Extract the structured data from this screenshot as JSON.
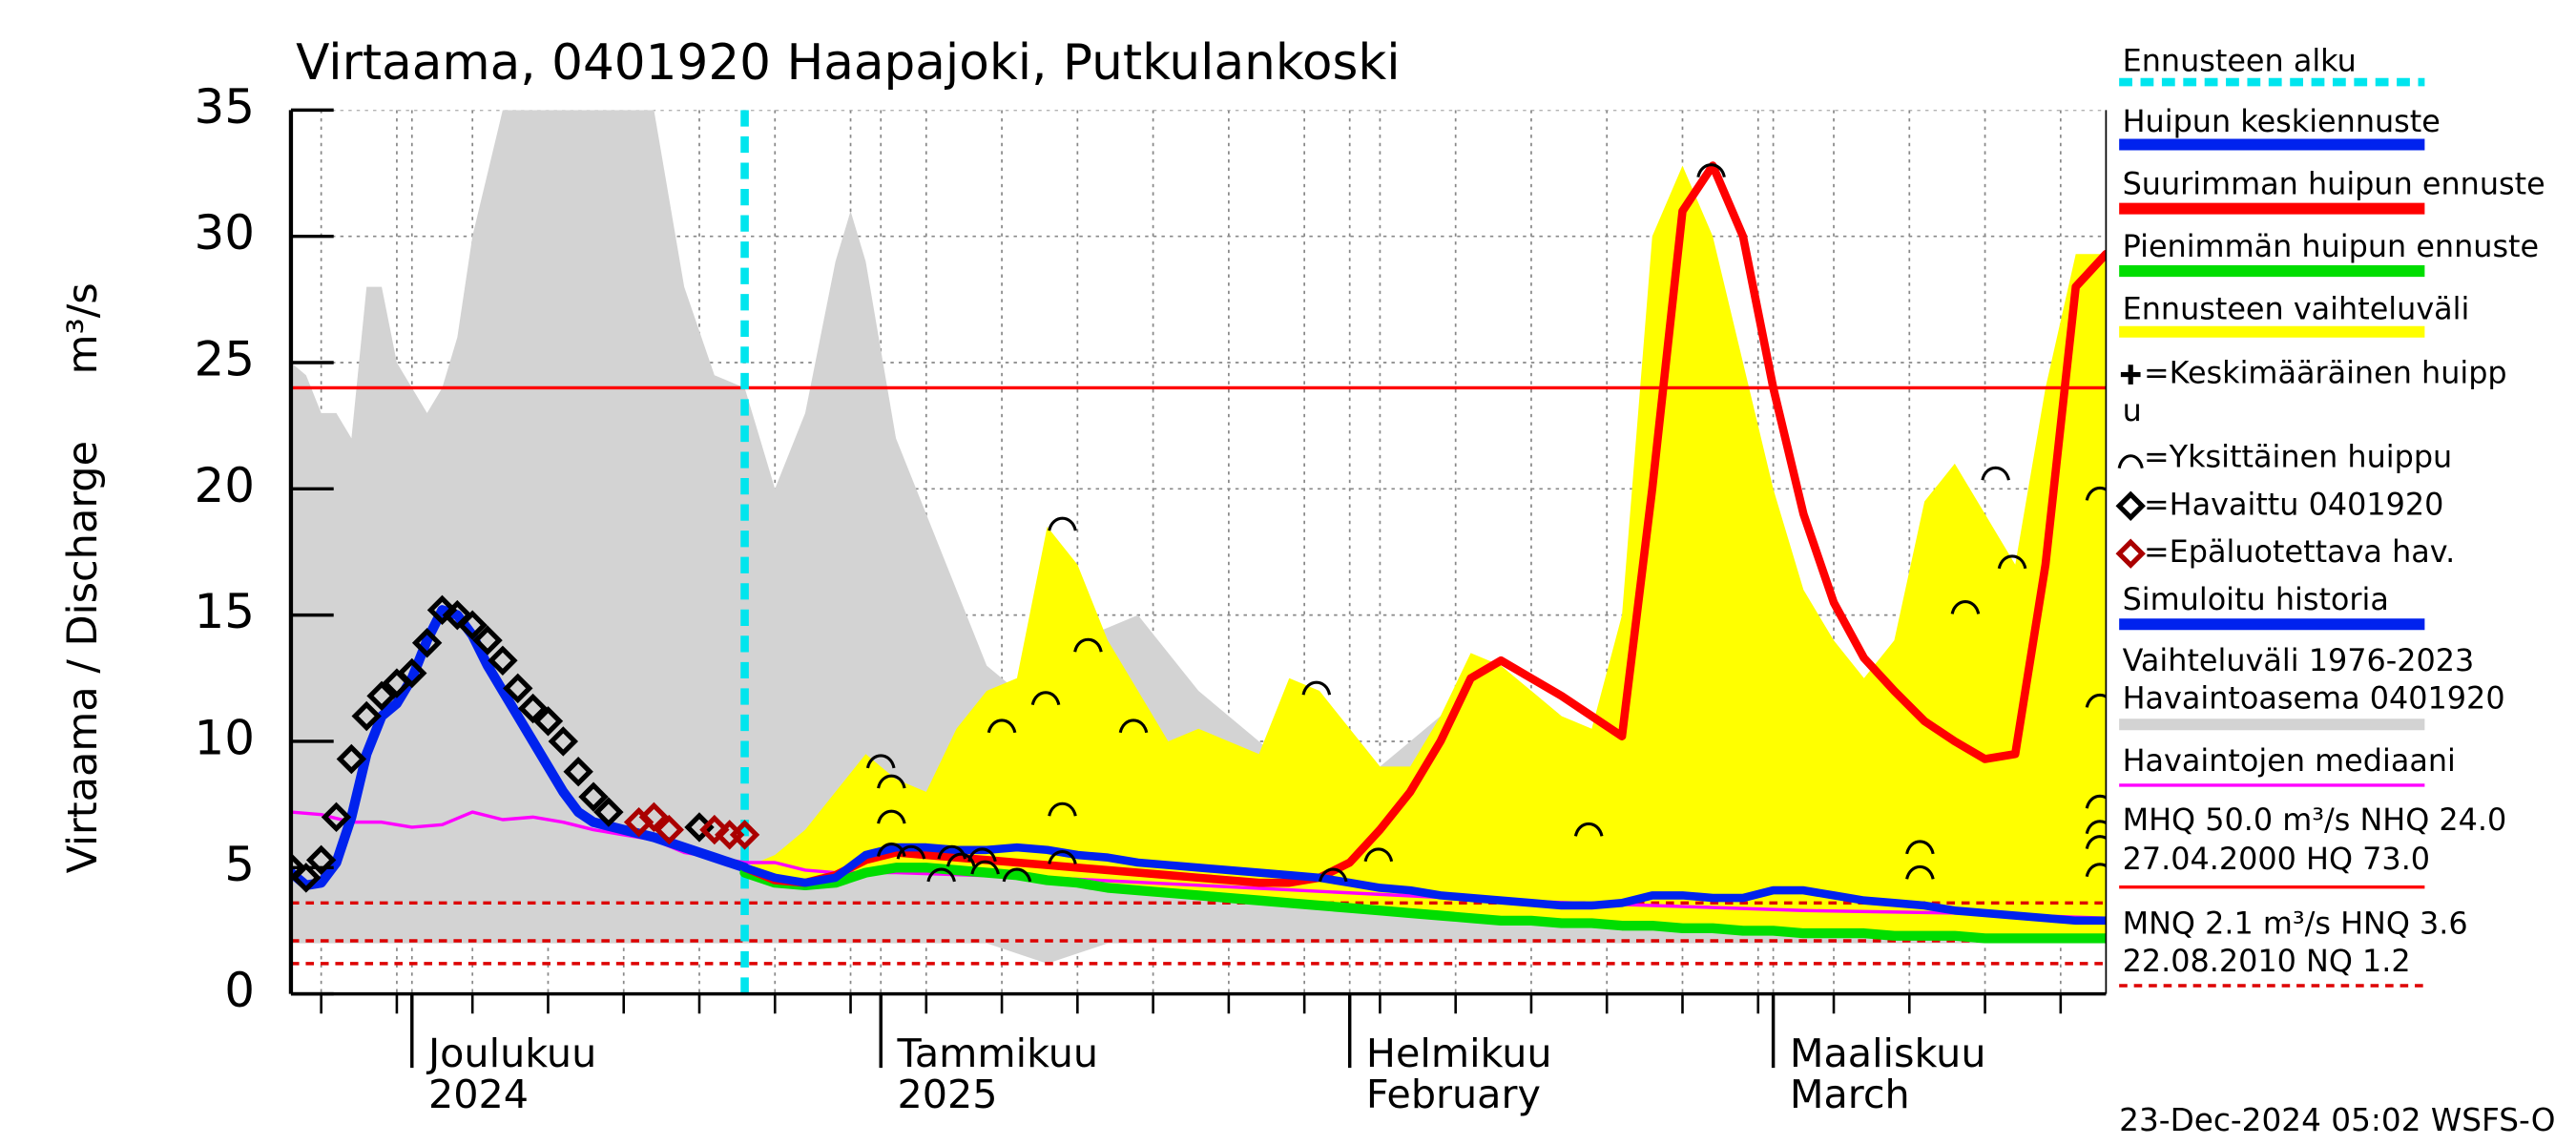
{
  "chart_data": {
    "type": "line",
    "title": "Virtaama, 0401920 Haapajoki, Putkulankoski",
    "ylabel": "Virtaama / Discharge",
    "yunit": "m³/s",
    "xlim": [
      0,
      120
    ],
    "ylim": [
      0,
      35
    ],
    "yticks": [
      0,
      5,
      10,
      15,
      20,
      25,
      30,
      35
    ],
    "xticks": [
      {
        "value": 8,
        "label": "Joulukuu",
        "label2": "2024"
      },
      {
        "value": 39,
        "label": "Tammikuu",
        "label2": "2025"
      },
      {
        "value": 70,
        "label": "Helmikuu",
        "label2": "February"
      },
      {
        "value": 98,
        "label": "Maaliskuu",
        "label2": "March"
      }
    ],
    "xgrid": [
      2,
      7,
      12,
      17,
      22,
      27,
      32,
      37,
      42,
      47,
      52,
      57,
      62,
      67,
      72,
      77,
      82,
      87,
      92,
      97,
      102,
      107,
      112,
      117
    ],
    "grid": true,
    "forecast_start": 30,
    "forecast_color": "#00e5ee",
    "reference_lines": [
      {
        "value": 24.0,
        "color": "#ff0000",
        "style": "solid"
      },
      {
        "value": 3.6,
        "color": "#dd0000",
        "style": "dashed"
      },
      {
        "value": 2.1,
        "color": "#dd0000",
        "style": "dashed"
      },
      {
        "value": 1.2,
        "color": "#dd0000",
        "style": "dashed"
      }
    ],
    "series": [
      {
        "kind": "band",
        "color": "#d3d3d3",
        "x": [
          0,
          1,
          2,
          3,
          4,
          5,
          6,
          7,
          8,
          9,
          10,
          11,
          12,
          14,
          16,
          18,
          20,
          22,
          24,
          26,
          28,
          30,
          32,
          34,
          36,
          37,
          38,
          40,
          42,
          44,
          46,
          48,
          50,
          52,
          54,
          56,
          58,
          60,
          62,
          64,
          66,
          68,
          70,
          72,
          74,
          76,
          78,
          80,
          82,
          84,
          86,
          88,
          90,
          92,
          94,
          96,
          98,
          100,
          104,
          108,
          112,
          116,
          120
        ],
        "upper": [
          25,
          24.5,
          23,
          23,
          22,
          28,
          28,
          25,
          24,
          23,
          24,
          26,
          30,
          35,
          35,
          35,
          35,
          35,
          35,
          28,
          24.5,
          24,
          20,
          23,
          29,
          31,
          29,
          22,
          19,
          16,
          13,
          12,
          13,
          14,
          14.5,
          15,
          13.5,
          12,
          11,
          10,
          9,
          8,
          8,
          9,
          10,
          11,
          12,
          12.5,
          12,
          11,
          10,
          10,
          9.5,
          9,
          9,
          8.5,
          8.5,
          8,
          8,
          8,
          7.5,
          7.5,
          7
        ],
        "lower": [
          2,
          2,
          2,
          2,
          2,
          2,
          2,
          2,
          2,
          2,
          2,
          2,
          2,
          2,
          2,
          2,
          2,
          2,
          2,
          2,
          2,
          2,
          2,
          2,
          2,
          2,
          2,
          2,
          2,
          2,
          2,
          1.6,
          1.2,
          1.6,
          2,
          2,
          2,
          2,
          2,
          2,
          2,
          2,
          2,
          2,
          2,
          2,
          2,
          2,
          2,
          2,
          2,
          2,
          2,
          2,
          2,
          2,
          2,
          2,
          2,
          2,
          2,
          2,
          2
        ]
      },
      {
        "kind": "band",
        "color": "#ffff00",
        "x": [
          30,
          32,
          34,
          36,
          38,
          40,
          42,
          44,
          46,
          48,
          50,
          52,
          54,
          56,
          58,
          60,
          62,
          64,
          66,
          68,
          70,
          72,
          74,
          76,
          78,
          80,
          82,
          84,
          86,
          88,
          90,
          92,
          94,
          96,
          98,
          100,
          102,
          104,
          106,
          108,
          110,
          112,
          114,
          116,
          118,
          120
        ],
        "upper": [
          5,
          5.5,
          6.5,
          8,
          9.5,
          8.5,
          8,
          10.5,
          12,
          12.5,
          18.5,
          17,
          14,
          12,
          10,
          10.5,
          10,
          9.5,
          12.5,
          12,
          10.5,
          9,
          9,
          11,
          13.5,
          13,
          12,
          11,
          10.5,
          15,
          30,
          32.8,
          30,
          25,
          20,
          16,
          14,
          12.5,
          14,
          19.5,
          21,
          19,
          17,
          24,
          29.3,
          29.3
        ],
        "lower": [
          4.8,
          4.4,
          4.3,
          4.4,
          4.8,
          5.0,
          5.0,
          4.9,
          4.8,
          4.7,
          4.5,
          4.4,
          4.2,
          4.1,
          4.0,
          3.9,
          3.8,
          3.7,
          3.6,
          3.5,
          3.4,
          3.3,
          3.2,
          3.1,
          3.0,
          2.9,
          2.9,
          2.8,
          2.8,
          2.7,
          2.7,
          2.6,
          2.6,
          2.5,
          2.5,
          2.4,
          2.4,
          2.4,
          2.3,
          2.3,
          2.3,
          2.2,
          2.2,
          2.2,
          2.2,
          2.2
        ]
      },
      {
        "kind": "line",
        "color": "#ff00ff",
        "width": 2,
        "x": [
          0,
          2,
          4,
          6,
          8,
          10,
          12,
          14,
          16,
          18,
          20,
          22,
          24,
          26,
          28,
          30,
          32,
          34,
          36,
          40,
          50,
          60,
          70,
          80,
          90,
          100,
          110,
          120
        ],
        "values": [
          7.2,
          7.1,
          6.8,
          6.8,
          6.6,
          6.7,
          7.2,
          6.9,
          7.0,
          6.8,
          6.5,
          6.3,
          6.1,
          5.6,
          5.4,
          5.2,
          5.2,
          4.9,
          4.8,
          4.8,
          4.6,
          4.3,
          4.0,
          3.7,
          3.5,
          3.3,
          3.2,
          3.0
        ]
      },
      {
        "kind": "line",
        "color": "#0022ee",
        "width": 6,
        "x": [
          0,
          1,
          2,
          3,
          4,
          5,
          6,
          7,
          8,
          9,
          10,
          11,
          12,
          13,
          14,
          15,
          16,
          17,
          18,
          19,
          20,
          22,
          24,
          26,
          28,
          30
        ],
        "values": [
          4.8,
          4.3,
          4.4,
          5.2,
          7,
          9.5,
          11,
          11.5,
          12.5,
          14,
          15.2,
          15,
          14.2,
          13,
          12,
          11,
          10,
          9,
          8,
          7.2,
          6.8,
          6.5,
          6.2,
          5.8,
          5.4,
          5.0
        ]
      },
      {
        "kind": "line",
        "color": "#00dd00",
        "width": 6,
        "x": [
          30,
          32,
          34,
          36,
          38,
          40,
          42,
          44,
          46,
          48,
          50,
          52,
          54,
          56,
          58,
          60,
          62,
          64,
          66,
          68,
          70,
          72,
          74,
          76,
          78,
          80,
          82,
          84,
          86,
          88,
          90,
          92,
          94,
          96,
          98,
          100,
          102,
          104,
          106,
          108,
          110,
          112,
          114,
          116,
          118,
          120
        ],
        "values": [
          4.8,
          4.4,
          4.3,
          4.4,
          4.8,
          5.0,
          5.0,
          4.9,
          4.8,
          4.7,
          4.5,
          4.4,
          4.2,
          4.1,
          4.0,
          3.9,
          3.8,
          3.7,
          3.6,
          3.5,
          3.4,
          3.3,
          3.2,
          3.1,
          3.0,
          2.9,
          2.9,
          2.8,
          2.8,
          2.7,
          2.7,
          2.6,
          2.6,
          2.5,
          2.5,
          2.4,
          2.4,
          2.4,
          2.3,
          2.3,
          2.3,
          2.2,
          2.2,
          2.2,
          2.2,
          2.2
        ]
      },
      {
        "kind": "line",
        "color": "#ff0000",
        "width": 5,
        "x": [
          30,
          32,
          34,
          36,
          38,
          40,
          42,
          44,
          46,
          48,
          50,
          52,
          54,
          56,
          58,
          60,
          62,
          64,
          66,
          68,
          70,
          72,
          74,
          76,
          78,
          80,
          82,
          84,
          86,
          88,
          90,
          92,
          94,
          96,
          98,
          100,
          102,
          104,
          106,
          108,
          110,
          112,
          114,
          116,
          118,
          120
        ],
        "values": [
          5,
          4.5,
          4.4,
          4.7,
          5.3,
          5.6,
          5.5,
          5.4,
          5.3,
          5.2,
          5.1,
          5.0,
          4.9,
          4.8,
          4.7,
          4.6,
          4.5,
          4.4,
          4.4,
          4.6,
          5.2,
          6.5,
          8,
          10,
          12.5,
          13.2,
          12.5,
          11.8,
          11,
          10.2,
          20,
          31,
          32.8,
          30,
          24,
          19,
          15.5,
          13.3,
          12,
          10.8,
          10,
          9.3,
          9.5,
          17,
          28,
          29.3
        ]
      },
      {
        "kind": "line",
        "color": "#0022ee",
        "width": 5,
        "x": [
          30,
          32,
          34,
          36,
          38,
          40,
          42,
          44,
          46,
          48,
          50,
          52,
          54,
          56,
          58,
          60,
          62,
          64,
          66,
          68,
          70,
          72,
          74,
          76,
          78,
          80,
          82,
          84,
          86,
          88,
          90,
          92,
          94,
          96,
          98,
          100,
          102,
          104,
          106,
          108,
          110,
          112,
          114,
          116,
          118,
          120
        ],
        "values": [
          5,
          4.6,
          4.4,
          4.6,
          5.5,
          5.8,
          5.8,
          5.7,
          5.7,
          5.8,
          5.7,
          5.5,
          5.4,
          5.2,
          5.1,
          5.0,
          4.9,
          4.8,
          4.7,
          4.6,
          4.4,
          4.2,
          4.1,
          3.9,
          3.8,
          3.7,
          3.6,
          3.5,
          3.5,
          3.6,
          3.9,
          3.9,
          3.8,
          3.8,
          4.1,
          4.1,
          3.9,
          3.7,
          3.6,
          3.5,
          3.3,
          3.2,
          3.1,
          3.0,
          2.9,
          2.9
        ]
      },
      {
        "kind": "arc",
        "color": "#000000",
        "x": [
          39.0,
          39.7,
          39.7,
          39.7,
          41.0,
          43.0,
          43.7,
          44.3,
          45.7,
          45.9,
          47.0,
          48.0,
          49.9,
          51.0,
          51.0,
          51.0,
          52.7,
          55.7,
          67.8,
          68.9,
          71.9,
          85.8,
          93.9,
          107.7,
          107.7,
          110.7,
          112.7,
          113.8,
          119.6,
          119.6,
          119.6,
          119.6,
          119.6,
          119.6
        ],
        "values": [
          9.4,
          8.6,
          7.2,
          5.9,
          5.8,
          4.9,
          5.8,
          5.5,
          5.7,
          5.2,
          10.8,
          4.9,
          11.9,
          18.8,
          7.5,
          5.6,
          14,
          10.8,
          12.3,
          4.9,
          5.7,
          6.7,
          32.8,
          6,
          5,
          15.5,
          20.8,
          17.3,
          20,
          11.8,
          7.8,
          6.8,
          6.2,
          5.1
        ]
      },
      {
        "kind": "diamond",
        "color": "#000000",
        "x": [
          0,
          1,
          2,
          3,
          4,
          5,
          6,
          7,
          8,
          9,
          10,
          11,
          12,
          13,
          14,
          15,
          16,
          17,
          18,
          19,
          20,
          21,
          27
        ],
        "values": [
          5.0,
          4.6,
          5.3,
          7,
          9.3,
          11,
          11.8,
          12.3,
          12.7,
          13.9,
          15.2,
          15,
          14.6,
          14,
          13.2,
          12.1,
          11.3,
          10.8,
          10,
          8.8,
          7.8,
          7.2,
          6.6
        ]
      },
      {
        "kind": "diamond",
        "color": "#aa0000",
        "x": [
          23,
          24,
          25,
          28,
          29,
          30
        ],
        "values": [
          6.8,
          7,
          6.5,
          6.5,
          6.3,
          6.3
        ]
      }
    ],
    "legend": [
      {
        "text": [
          "Ennusteen alku"
        ],
        "color": "#00e5ee",
        "style": "dashed"
      },
      {
        "text": [
          "Huipun keskiennuste"
        ],
        "color": "#0022ee",
        "style": "line"
      },
      {
        "text": [
          "Suurimman huipun ennuste"
        ],
        "color": "#ff0000",
        "style": "line"
      },
      {
        "text": [
          "Pienimmän huipun ennuste"
        ],
        "color": "#00dd00",
        "style": "line"
      },
      {
        "text": [
          "Ennusteen vaihteluväli"
        ],
        "color": "#ffff00",
        "style": "line"
      },
      {
        "text": [
          "=Keskimääräinen huipp",
          "u"
        ],
        "color": "#000000",
        "style": "plus"
      },
      {
        "text": [
          "=Yksittäinen huippu"
        ],
        "color": "#000000",
        "style": "arc"
      },
      {
        "text": [
          "=Havaittu 0401920"
        ],
        "color": "#000000",
        "style": "diamond"
      },
      {
        "text": [
          "=Epäluotettava hav."
        ],
        "color": "#aa0000",
        "style": "diamond"
      },
      {
        "text": [
          "Simuloitu historia"
        ],
        "color": "#0022ee",
        "style": "line"
      },
      {
        "text": [
          "Vaihteluväli 1976-2023",
          " Havaintoasema 0401920"
        ],
        "color": "#d3d3d3",
        "style": "line"
      },
      {
        "text": [
          "Havaintojen mediaani"
        ],
        "color": "#ff00ff",
        "style": "thin"
      },
      {
        "text": [
          "MHQ 50.0 m³/s NHQ 24.0",
          "27.04.2000 HQ 73.0"
        ],
        "color": "#ff0000",
        "style": "thin"
      },
      {
        "text": [
          "MNQ  2.1 m³/s HNQ  3.6",
          "22.08.2010 NQ  1.2"
        ],
        "color": "#dd0000",
        "style": "thindashed"
      }
    ],
    "footer": "23-Dec-2024 05:02 WSFS-O"
  }
}
